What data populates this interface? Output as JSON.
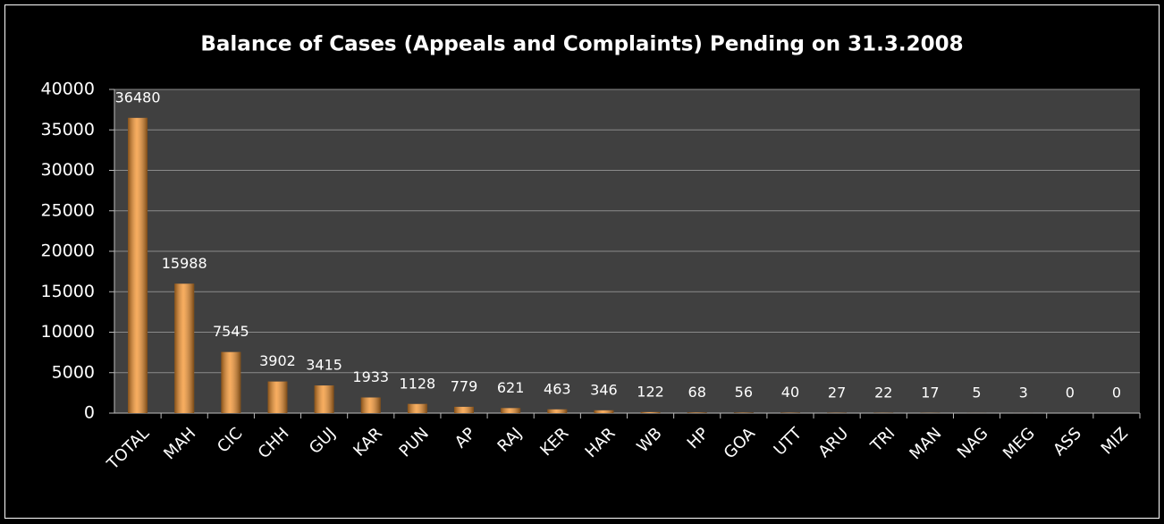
{
  "chart_data": {
    "type": "bar",
    "title": "Balance of Cases (Appeals and Complaints) Pending on 31.3.2008",
    "categories": [
      "TOTAL",
      "MAH",
      "CIC",
      "CHH",
      "GUJ",
      "KAR",
      "PUN",
      "AP",
      "RAJ",
      "KER",
      "HAR",
      "WB",
      "HP",
      "GOA",
      "UTT",
      "ARU",
      "TRI",
      "MAN",
      "NAG",
      "MEG",
      "ASS",
      "MIZ"
    ],
    "values": [
      36480,
      15988,
      7545,
      3902,
      3415,
      1933,
      1128,
      779,
      621,
      463,
      346,
      122,
      68,
      56,
      40,
      27,
      22,
      17,
      5,
      3,
      0,
      0
    ],
    "color": "#f5922a",
    "ylim": [
      0,
      40000
    ],
    "yticks": [
      0,
      5000,
      10000,
      15000,
      20000,
      25000,
      30000,
      35000,
      40000
    ],
    "grid": true
  }
}
